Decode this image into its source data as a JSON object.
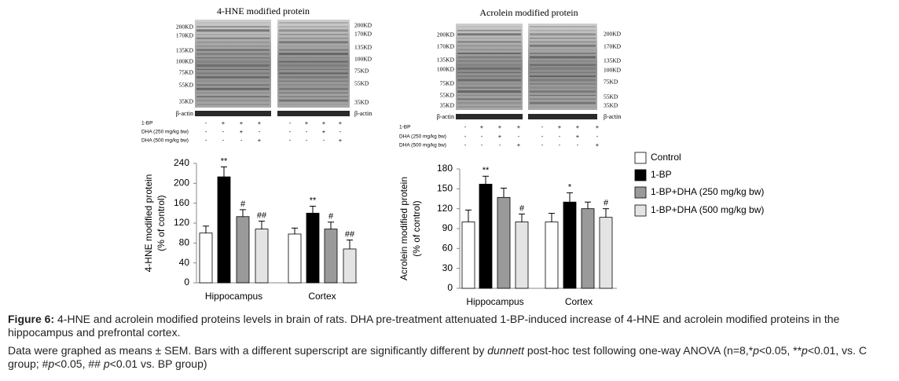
{
  "blots": [
    {
      "title": "4-HNE modified protein",
      "markers": [
        "200KD",
        "170KD",
        "135KD",
        "100KD",
        "75KD",
        "55KD",
        "35KD"
      ],
      "loading_control": "β-actin",
      "treatments": [
        {
          "label": "1-BP",
          "lanes": [
            "-",
            "+",
            "+",
            "+",
            "-",
            "+",
            "+",
            "+"
          ]
        },
        {
          "label": "DHA (250 mg/kg bw)",
          "lanes": [
            "-",
            "-",
            "+",
            "-",
            "-",
            "-",
            "+",
            "-"
          ]
        },
        {
          "label": "DHA (500 mg/kg bw)",
          "lanes": [
            "-",
            "-",
            "-",
            "+",
            "-",
            "-",
            "-",
            "+"
          ]
        }
      ]
    },
    {
      "title": "Acrolein modified protein",
      "markers": [
        "200KD",
        "170KD",
        "135KD",
        "100KD",
        "75KD",
        "55KD",
        "35KD"
      ],
      "loading_control": "β-actin",
      "treatments": [
        {
          "label": "1-BP",
          "lanes": [
            "-",
            "+",
            "+",
            "+",
            "-",
            "+",
            "+",
            "+"
          ]
        },
        {
          "label": "DHA (250 mg/kg bw)",
          "lanes": [
            "-",
            "-",
            "+",
            "-",
            "-",
            "-",
            "+",
            "-"
          ]
        },
        {
          "label": "DHA (500 mg/kg bw)",
          "lanes": [
            "-",
            "-",
            "-",
            "+",
            "-",
            "-",
            "-",
            "+"
          ]
        }
      ]
    }
  ],
  "chart_data": [
    {
      "type": "bar",
      "ylabel": [
        "4-HNE modified protein",
        "(% of control)"
      ],
      "categories": [
        "Hippocampus",
        "Cortex"
      ],
      "ylim": [
        0,
        240
      ],
      "yticks": [
        0,
        40,
        80,
        120,
        160,
        200,
        240
      ],
      "series": [
        {
          "name": "Control",
          "color": "#ffffff",
          "values": [
            100,
            98
          ],
          "errors": [
            14,
            12
          ],
          "significance": [
            null,
            null
          ]
        },
        {
          "name": "1-BP",
          "color": "#000000",
          "values": [
            213,
            140
          ],
          "errors": [
            20,
            14
          ],
          "significance": [
            "**",
            "**"
          ]
        },
        {
          "name": "1-BP+DHA (250 mg/kg bw)",
          "color": "#9a9a9a",
          "values": [
            133,
            108
          ],
          "errors": [
            14,
            14
          ],
          "significance": [
            "#",
            "#"
          ]
        },
        {
          "name": "1-BP+DHA (500 mg/kg bw)",
          "color": "#e4e4e4",
          "values": [
            108,
            68
          ],
          "errors": [
            16,
            18
          ],
          "significance": [
            "##",
            "##"
          ]
        }
      ]
    },
    {
      "type": "bar",
      "ylabel": [
        "Acrolein modified protein",
        "(% of control)"
      ],
      "categories": [
        "Hippocampus",
        "Cortex"
      ],
      "ylim": [
        0,
        180
      ],
      "yticks": [
        0,
        30,
        60,
        90,
        120,
        150,
        180
      ],
      "series": [
        {
          "color": "#ffffff",
          "values": [
            100,
            100
          ],
          "errors": [
            18,
            13
          ],
          "significance": [
            null,
            null
          ]
        },
        {
          "color": "#000000",
          "values": [
            157,
            130
          ],
          "errors": [
            12,
            14
          ],
          "significance": [
            "**",
            "*"
          ]
        },
        {
          "color": "#9a9a9a",
          "values": [
            137,
            120
          ],
          "errors": [
            14,
            10
          ],
          "significance": [
            null,
            null
          ]
        },
        {
          "color": "#e4e4e4",
          "values": [
            100,
            107
          ],
          "errors": [
            12,
            13
          ],
          "significance": [
            "#",
            "#"
          ]
        }
      ]
    }
  ],
  "caption": {
    "label": "Figure 6:",
    "text": "4-HNE and acrolein modified proteins levels in brain of rats. DHA pre-treatment attenuated 1-BP-induced increase of 4-HNE and acrolein modified proteins in the hippocampus and prefrontal cortex.",
    "note": [
      {
        "text": "Data were graphed as means ± SEM. Bars with a different superscript are significantly different by ",
        "italic": false
      },
      {
        "text": "dunnett",
        "italic": true
      },
      {
        "text": " post-hoc test following one-way ANOVA (n=8,*",
        "italic": false
      },
      {
        "text": "p",
        "italic": true
      },
      {
        "text": "<0.05, **",
        "italic": false
      },
      {
        "text": "p",
        "italic": true
      },
      {
        "text": "<0.01, vs. C group; #",
        "italic": false
      },
      {
        "text": "p",
        "italic": true
      },
      {
        "text": "<0.05, ## ",
        "italic": false
      },
      {
        "text": "p",
        "italic": true
      },
      {
        "text": "<0.01 vs. BP group)",
        "italic": false
      }
    ]
  }
}
